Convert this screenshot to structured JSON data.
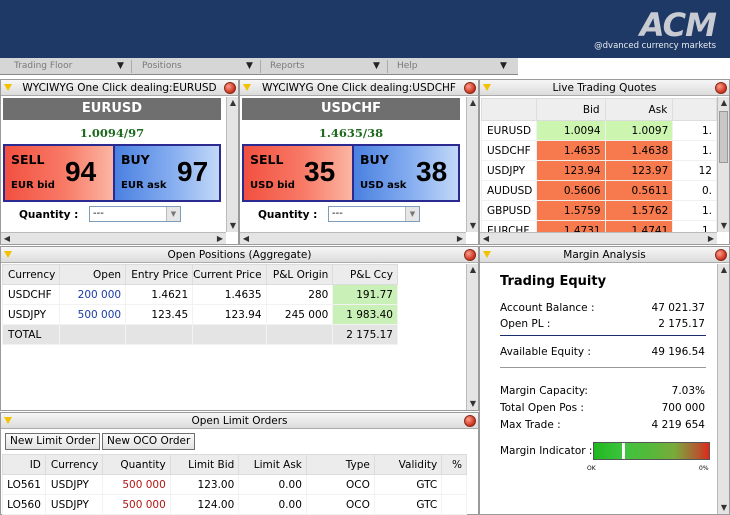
{
  "brand": {
    "logo": "ACM",
    "tagline": "@dvanced currency markets"
  },
  "menu": {
    "items": [
      "Trading Floor",
      "Positions",
      "Reports",
      "Help"
    ]
  },
  "dealing": [
    {
      "title": "WYCIWYG One Click dealing:EURUSD",
      "pair": "EURUSD",
      "spot": "1.0094/97",
      "sell_label": "SELL",
      "sell_sub": "EUR bid",
      "sell_value": "94",
      "buy_label": "BUY",
      "buy_sub": "EUR ask",
      "buy_value": "97",
      "qty_label": "Quantity :",
      "qty_value": "---"
    },
    {
      "title": "WYCIWYG One Click dealing:USDCHF",
      "pair": "USDCHF",
      "spot": "1.4635/38",
      "sell_label": "SELL",
      "sell_sub": "USD bid",
      "sell_value": "35",
      "buy_label": "BUY",
      "buy_sub": "USD ask",
      "buy_value": "38",
      "qty_label": "Quantity :",
      "qty_value": "---"
    }
  ],
  "quotes": {
    "title": "Live Trading Quotes",
    "columns": [
      "",
      "Bid",
      "Ask",
      ""
    ],
    "rows": [
      {
        "sym": "EURUSD",
        "bid": "1.0094",
        "ask": "1.0097",
        "extra": "1.",
        "up": true
      },
      {
        "sym": "USDCHF",
        "bid": "1.4635",
        "ask": "1.4638",
        "extra": "1.",
        "up": false
      },
      {
        "sym": "USDJPY",
        "bid": "123.94",
        "ask": "123.97",
        "extra": "12",
        "up": false
      },
      {
        "sym": "AUDUSD",
        "bid": "0.5606",
        "ask": "0.5611",
        "extra": "0.",
        "up": false
      },
      {
        "sym": "GBPUSD",
        "bid": "1.5759",
        "ask": "1.5762",
        "extra": "1.",
        "up": false
      },
      {
        "sym": "EURCHF",
        "bid": "1.4731",
        "ask": "1.4741",
        "extra": "1.",
        "up": false
      }
    ],
    "colors": {
      "up": "#ccf5b0",
      "down": "#f77a4e"
    }
  },
  "positions": {
    "title": "Open Positions (Aggregate)",
    "columns": [
      "Currency",
      "Open",
      "Entry Price",
      "Current Price",
      "P&L Origin",
      "P&L Ccy"
    ],
    "rows": [
      {
        "ccy": "USDCHF",
        "open": "200 000",
        "entry": "1.4621",
        "current": "1.4635",
        "pl_origin": "280",
        "pl_ccy": "191.77"
      },
      {
        "ccy": "USDJPY",
        "open": "500 000",
        "entry": "123.45",
        "current": "123.94",
        "pl_origin": "245 000",
        "pl_ccy": "1 983.40"
      }
    ],
    "total_label": "TOTAL",
    "total_value": "2 175.17"
  },
  "limits": {
    "title": "Open Limit Orders",
    "new_limit_label": "New Limit Order",
    "new_oco_label": "New OCO Order",
    "columns": [
      "ID",
      "Currency",
      "Quantity",
      "Limit Bid",
      "Limit Ask",
      "Type",
      "Validity",
      "%"
    ],
    "rows": [
      {
        "id": "LO561",
        "ccy": "USDJPY",
        "qty": "500 000",
        "bid": "123.00",
        "ask": "0.00",
        "type": "OCO",
        "validity": "GTC"
      },
      {
        "id": "LO560",
        "ccy": "USDJPY",
        "qty": "500 000",
        "bid": "124.00",
        "ask": "0.00",
        "type": "OCO",
        "validity": "GTC"
      }
    ]
  },
  "margin": {
    "title": "Margin Analysis",
    "heading": "Trading Equity",
    "account_balance_label": "Account Balance :",
    "account_balance": "47 021.37",
    "open_pl_label": "Open PL :",
    "open_pl": "2 175.17",
    "available_equity_label": "Available Equity :",
    "available_equity": "49 196.54",
    "margin_capacity_label": "Margin Capacity:",
    "margin_capacity": "7.03%",
    "total_open_pos_label": "Total Open Pos :",
    "total_open_pos": "700 000",
    "max_trade_label": "Max Trade :",
    "max_trade": "4 219 654",
    "indicator_label": "Margin Indicator :",
    "indicator_level": 0.25,
    "scale_left": "OK",
    "scale_right": "0%"
  }
}
